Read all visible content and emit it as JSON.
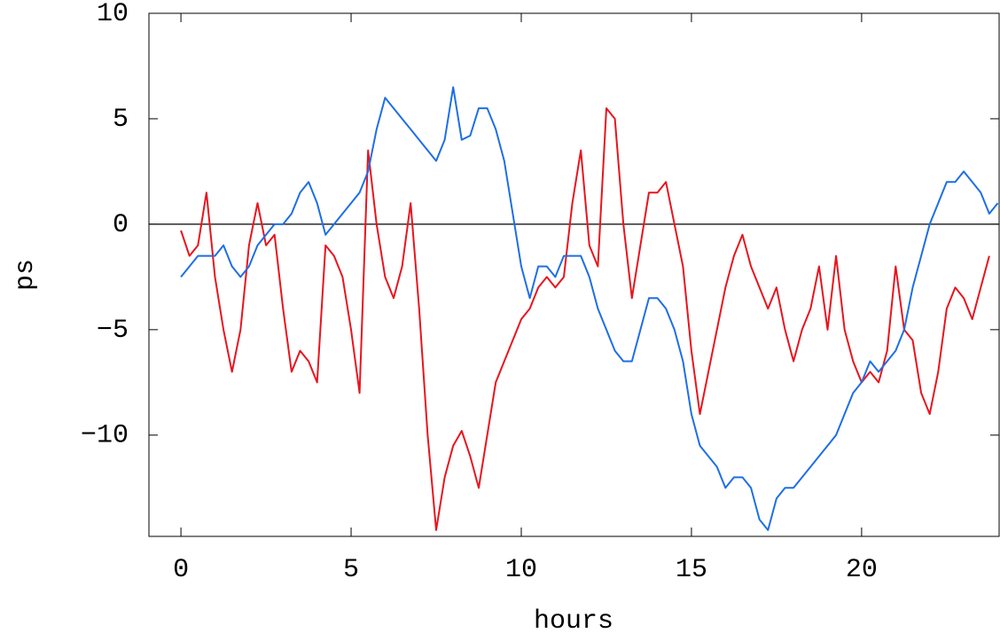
{
  "chart_data": {
    "type": "line",
    "x_label": "hours",
    "y_label": "ps",
    "x": [
      0,
      0.25,
      0.5,
      0.75,
      1,
      1.25,
      1.5,
      1.75,
      2,
      2.25,
      2.5,
      2.75,
      3,
      3.25,
      3.5,
      3.75,
      4,
      4.25,
      4.5,
      4.75,
      5,
      5.25,
      5.5,
      5.75,
      6,
      6.25,
      6.5,
      6.75,
      7,
      7.25,
      7.5,
      7.75,
      8,
      8.25,
      8.5,
      8.75,
      9,
      9.25,
      9.5,
      9.75,
      10,
      10.25,
      10.5,
      10.75,
      11,
      11.25,
      11.5,
      11.75,
      12,
      12.25,
      12.5,
      12.75,
      13,
      13.25,
      13.5,
      13.75,
      14,
      14.25,
      14.5,
      14.75,
      15,
      15.25,
      15.5,
      15.75,
      16,
      16.25,
      16.5,
      16.75,
      17,
      17.25,
      17.5,
      17.75,
      18,
      18.25,
      18.5,
      18.75,
      19,
      19.25,
      19.5,
      19.75,
      20,
      20.25,
      20.5,
      20.75,
      21,
      21.25,
      21.5,
      21.75,
      22,
      22.25,
      22.5,
      22.75,
      23,
      23.25,
      23.5,
      23.75,
      24
    ],
    "series": [
      {
        "color": "#e8141e",
        "values": [
          -0.3,
          -1.5,
          -1,
          1.5,
          -2.5,
          -5,
          -7,
          -5,
          -1,
          1,
          -1,
          -0.5,
          -4,
          -7,
          -6,
          -6.5,
          -7.5,
          -1,
          -1.5,
          -2.5,
          -5,
          -8,
          3.5,
          0,
          -2.5,
          -3.5,
          -2,
          1,
          -4,
          -10,
          -14.5,
          -12,
          -10.5,
          -9.8,
          -11,
          -12.5,
          -10,
          -7.5,
          -6.5,
          -5.5,
          -4.5,
          -4,
          -3,
          -2.5,
          -3,
          -2.5,
          1,
          3.5,
          -1,
          -2,
          5.5,
          5,
          0,
          -3.5,
          -1,
          1.5,
          1.5,
          2,
          0,
          -2,
          -6,
          -9,
          -7,
          -5,
          -3,
          -1.5,
          -0.5,
          -2,
          -3,
          -4,
          -3,
          -5,
          -6.5,
          -5,
          -4,
          -2,
          -5,
          -1.5,
          -5,
          -6.5,
          -7.5,
          -7,
          -7.5,
          -6,
          -2,
          -5,
          -5.5,
          -8,
          -9,
          -7,
          -4,
          -3,
          -3.5,
          -4.5,
          -3,
          -1.5,
          null
        ]
      },
      {
        "color": "#1e6ee6",
        "values": [
          -2.5,
          -2,
          -1.5,
          -1.5,
          -1.5,
          -1,
          -2,
          -2.5,
          -2,
          -1,
          -0.5,
          0,
          0,
          0.5,
          1.5,
          2,
          1,
          -0.5,
          0,
          0.5,
          1,
          1.5,
          2.5,
          4.5,
          6,
          5.5,
          5,
          4.5,
          4,
          3.5,
          3,
          4,
          6.5,
          4,
          4.2,
          5.5,
          5.5,
          4.5,
          3,
          0.5,
          -2,
          -3.5,
          -2,
          -2,
          -2.5,
          -1.5,
          -1.5,
          -1.5,
          -2.5,
          -4,
          -5,
          -6,
          -6.5,
          -6.5,
          -5,
          -3.5,
          -3.5,
          -4,
          -5,
          -6.5,
          -9,
          -10.5,
          -11,
          -11.5,
          -12.5,
          -12,
          -12,
          -12.5,
          -14,
          -14.5,
          -13,
          -12.5,
          -12.5,
          -12,
          -11.5,
          -11,
          -10.5,
          -10,
          -9,
          -8,
          -7.5,
          -6.5,
          -7,
          -6.5,
          -6,
          -5,
          -3,
          -1.5,
          0,
          1,
          2,
          2,
          2.5,
          2,
          1.5,
          0.5,
          1
        ]
      }
    ],
    "xlim": [
      -0.94,
      24.04
    ],
    "ylim": [
      -14.8,
      10
    ],
    "xticks": [
      0,
      5,
      10,
      15,
      20
    ],
    "yticks": [
      {
        "value": -10,
        "label": "−10"
      },
      {
        "value": -5,
        "label": "−5"
      },
      0,
      5,
      10
    ]
  }
}
